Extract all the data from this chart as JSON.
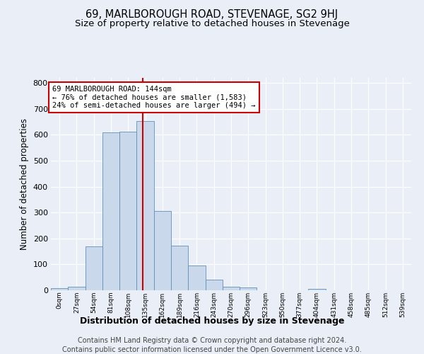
{
  "title": "69, MARLBOROUGH ROAD, STEVENAGE, SG2 9HJ",
  "subtitle": "Size of property relative to detached houses in Stevenage",
  "xlabel": "Distribution of detached houses by size in Stevenage",
  "ylabel": "Number of detached properties",
  "bin_labels": [
    "0sqm",
    "27sqm",
    "54sqm",
    "81sqm",
    "108sqm",
    "135sqm",
    "162sqm",
    "189sqm",
    "216sqm",
    "243sqm",
    "270sqm",
    "296sqm",
    "323sqm",
    "350sqm",
    "377sqm",
    "404sqm",
    "431sqm",
    "458sqm",
    "485sqm",
    "512sqm",
    "539sqm"
  ],
  "bar_values": [
    8,
    14,
    170,
    610,
    612,
    652,
    307,
    172,
    97,
    42,
    14,
    10,
    0,
    0,
    0,
    5,
    0,
    0,
    0,
    0,
    0
  ],
  "bar_color": "#c9d8ea",
  "bar_edge_color": "#6090b8",
  "vline_x": 5.333,
  "vline_color": "#cc0000",
  "annotation_text": "69 MARLBOROUGH ROAD: 144sqm\n← 76% of detached houses are smaller (1,583)\n24% of semi-detached houses are larger (494) →",
  "annotation_box_color": "#ffffff",
  "annotation_box_edge_color": "#cc0000",
  "ylim": [
    0,
    820
  ],
  "yticks": [
    0,
    100,
    200,
    300,
    400,
    500,
    600,
    700,
    800
  ],
  "footer_line1": "Contains HM Land Registry data © Crown copyright and database right 2024.",
  "footer_line2": "Contains public sector information licensed under the Open Government Licence v3.0.",
  "background_color": "#eaeff7",
  "plot_bg_color": "#eaeff7",
  "grid_color": "#ffffff",
  "title_fontsize": 10.5,
  "subtitle_fontsize": 9.5,
  "xlabel_fontsize": 9,
  "ylabel_fontsize": 8.5,
  "footer_fontsize": 7,
  "annot_fontsize": 7.5
}
